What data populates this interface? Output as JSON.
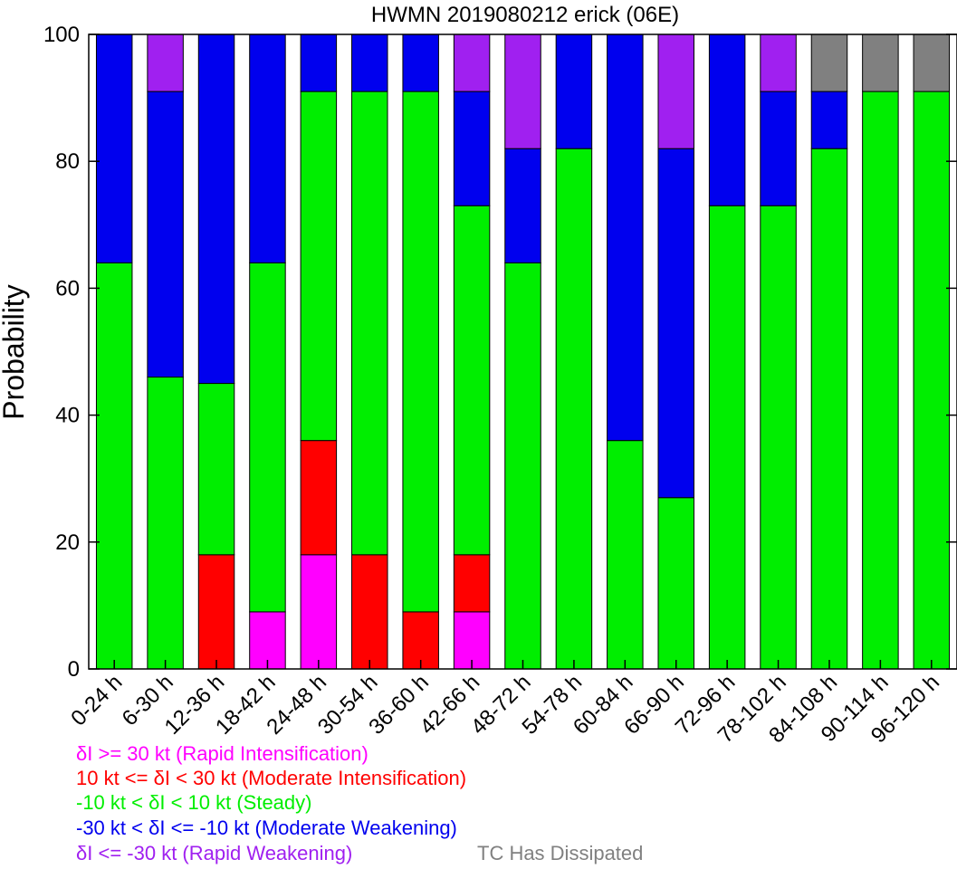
{
  "chart_data": {
    "type": "bar",
    "stacked": true,
    "title": "HWMN 2019080212 erick (06E)",
    "ylabel": "Probability",
    "ylim": [
      0,
      100
    ],
    "yticks": [
      "0",
      "20",
      "40",
      "60",
      "80",
      "100"
    ],
    "categories": [
      "0-24 h",
      "6-30 h",
      "12-36 h",
      "18-42 h",
      "24-48 h",
      "30-54 h",
      "36-60 h",
      "42-66 h",
      "48-72 h",
      "54-78 h",
      "60-84 h",
      "66-90 h",
      "72-96 h",
      "78-102 h",
      "84-108 h",
      "90-114 h",
      "96-120 h"
    ],
    "series": [
      {
        "name": "δI >= 30 kt (Rapid Intensification)",
        "color": "#ff00ff",
        "values": [
          0,
          0,
          0,
          9,
          18,
          0,
          0,
          9,
          0,
          0,
          0,
          0,
          0,
          0,
          0,
          0,
          0
        ]
      },
      {
        "name": "10 kt <= δI < 30 kt (Moderate Intensification)",
        "color": "#ff0000",
        "values": [
          0,
          0,
          18,
          0,
          18,
          18,
          9,
          9,
          0,
          0,
          0,
          0,
          0,
          0,
          0,
          0,
          0
        ]
      },
      {
        "name": "-10 kt < δI < 10 kt (Steady)",
        "color": "#00ee00",
        "values": [
          64,
          46,
          27,
          55,
          55,
          73,
          82,
          55,
          64,
          82,
          36,
          27,
          73,
          73,
          82,
          91,
          91
        ]
      },
      {
        "name": "-30 kt < δI <= -10 kt (Moderate Weakening)",
        "color": "#0000ee",
        "values": [
          36,
          45,
          55,
          36,
          9,
          9,
          9,
          18,
          18,
          18,
          64,
          55,
          27,
          18,
          9,
          0,
          0
        ]
      },
      {
        "name": "δI <= -30 kt (Rapid Weakening)",
        "color": "#a020f0",
        "values": [
          0,
          9,
          0,
          0,
          0,
          0,
          0,
          9,
          18,
          0,
          0,
          18,
          0,
          9,
          0,
          0,
          0
        ]
      },
      {
        "name": "TC Has Dissipated",
        "color": "#808080",
        "values": [
          0,
          0,
          0,
          0,
          0,
          0,
          0,
          0,
          0,
          0,
          0,
          0,
          0,
          0,
          9,
          9,
          9
        ]
      }
    ]
  }
}
